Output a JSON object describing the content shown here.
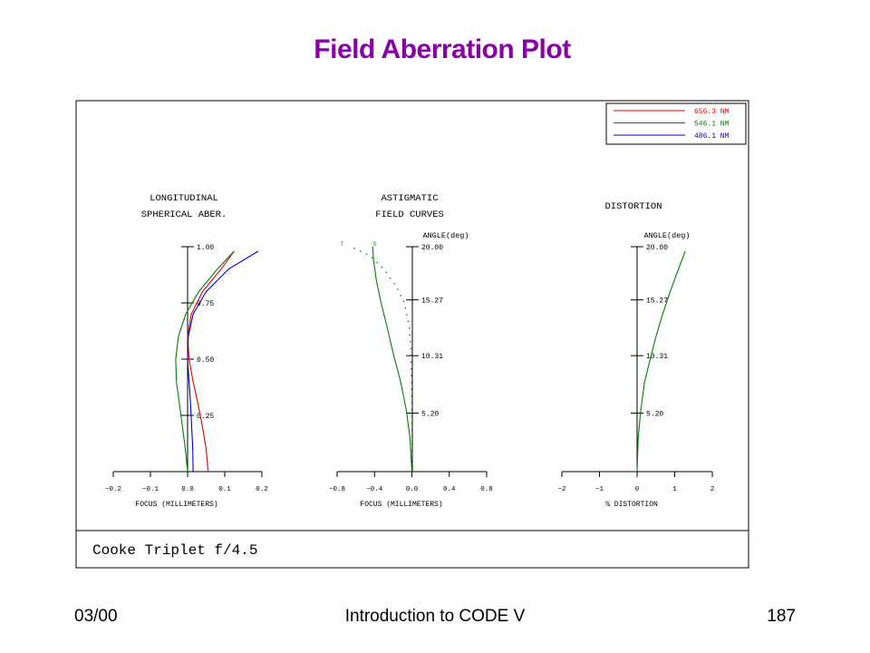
{
  "slide": {
    "title": "Field Aberration Plot",
    "footer_left": "03/00",
    "footer_center": "Introduction to CODE V",
    "footer_right": "187"
  },
  "colors": {
    "title": "#8a00a8",
    "red": "#e00000",
    "green": "#008000",
    "blue": "#0000d0"
  },
  "plot": {
    "caption": "Cooke Triplet f/4.5",
    "legend": [
      {
        "label": "656.3 NM",
        "color": "#e00000"
      },
      {
        "label": "546.1 NM",
        "color": "#008000"
      },
      {
        "label": "486.1 NM",
        "color": "#0000d0"
      }
    ]
  },
  "chart_data": [
    {
      "type": "line",
      "title": "LONGITUDINAL\nSPHERICAL ABER.",
      "xlabel": "FOCUS (MILLIMETERS)",
      "xlim": [
        -0.2,
        0.2
      ],
      "ylim": [
        0,
        1.0
      ],
      "x_ticks": [
        "-0.2",
        "-0.1",
        "0.0",
        "0.1",
        "0.2"
      ],
      "y_ticks": [
        "0.25",
        "0.50",
        "0.75",
        "1.00"
      ],
      "series": [
        {
          "name": "656.3 NM",
          "color": "#e00000",
          "x": [
            0.055,
            0.05,
            0.04,
            0.028,
            0.015,
            0.004,
            0.0,
            0.01,
            0.04,
            0.09,
            0.125
          ],
          "y": [
            0.0,
            0.1,
            0.2,
            0.3,
            0.4,
            0.5,
            0.6,
            0.7,
            0.8,
            0.9,
            0.98
          ]
        },
        {
          "name": "546.1 NM",
          "color": "#008000",
          "x": [
            0.0,
            -0.006,
            -0.014,
            -0.022,
            -0.03,
            -0.032,
            -0.025,
            -0.005,
            0.03,
            0.08,
            0.125
          ],
          "y": [
            0.0,
            0.1,
            0.2,
            0.3,
            0.4,
            0.5,
            0.6,
            0.7,
            0.8,
            0.9,
            0.98
          ]
        },
        {
          "name": "486.1 NM",
          "color": "#0000d0",
          "x": [
            0.015,
            0.014,
            0.011,
            0.008,
            0.004,
            0.0,
            0.002,
            0.015,
            0.05,
            0.11,
            0.19
          ],
          "y": [
            0.0,
            0.1,
            0.2,
            0.3,
            0.4,
            0.5,
            0.6,
            0.7,
            0.8,
            0.9,
            0.98
          ]
        }
      ]
    },
    {
      "type": "line",
      "title": "ASTIGMATIC\nFIELD CURVES",
      "xlabel": "FOCUS (MILLIMETERS)",
      "ylabel": "ANGLE(deg)",
      "xlim": [
        -0.8,
        0.8
      ],
      "ylim": [
        0,
        20.0
      ],
      "x_ticks": [
        "-0.8",
        "-0.4",
        "0.0",
        "0.4",
        "0.8"
      ],
      "y_ticks": [
        "5.20",
        "10.31",
        "15.27",
        "20.00"
      ],
      "annotations": [
        "T",
        "S"
      ],
      "series": [
        {
          "name": "S",
          "color": "#008000",
          "style": "solid",
          "x": [
            0.0,
            -0.02,
            -0.06,
            -0.12,
            -0.2,
            -0.27,
            -0.33,
            -0.38,
            -0.41,
            -0.42
          ],
          "y": [
            0.0,
            3.0,
            5.5,
            8.0,
            10.5,
            13.0,
            15.0,
            17.0,
            18.8,
            20.0
          ]
        },
        {
          "name": "T",
          "color": "#008000",
          "style": "dotted",
          "x": [
            0.0,
            0.0,
            -0.005,
            -0.01,
            -0.03,
            -0.08,
            -0.17,
            -0.3,
            -0.45,
            -0.65
          ],
          "y": [
            0.0,
            4.0,
            8.0,
            11.0,
            13.0,
            15.0,
            16.5,
            18.0,
            19.2,
            20.0
          ]
        }
      ]
    },
    {
      "type": "line",
      "title": "DISTORTION",
      "xlabel": "% DISTORTION",
      "ylabel": "ANGLE(deg)",
      "xlim": [
        -2,
        2
      ],
      "ylim": [
        0,
        20.0
      ],
      "x_ticks": [
        "-2",
        "-1",
        "0",
        "1",
        "2"
      ],
      "y_ticks": [
        "5.20",
        "10.31",
        "15.27",
        "20.00"
      ],
      "series": [
        {
          "name": "546.1 NM",
          "color": "#008000",
          "x": [
            0.0,
            0.03,
            0.1,
            0.2,
            0.35,
            0.5,
            0.68,
            0.88,
            1.1,
            1.28
          ],
          "y": [
            0.0,
            3.0,
            5.5,
            8.0,
            10.0,
            12.0,
            14.0,
            16.0,
            18.0,
            19.6
          ]
        }
      ]
    }
  ]
}
